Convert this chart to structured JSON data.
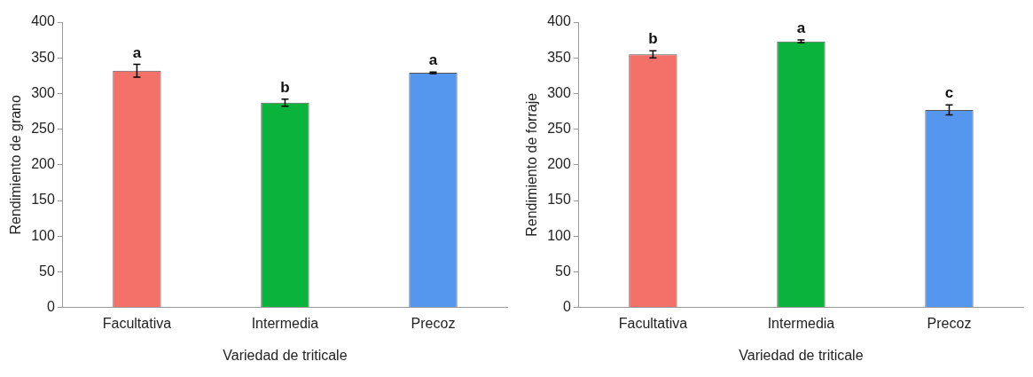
{
  "chart_data": [
    {
      "type": "bar",
      "xlabel": "Variedad de triticale",
      "ylabel": "Rendimiento de grano",
      "categories": [
        "Facultativa",
        "Intermedia",
        "Precoz"
      ],
      "values": [
        332,
        287,
        329
      ],
      "colors": [
        "#f4716a",
        "#0ab43c",
        "#5596ee"
      ],
      "errors": [
        9,
        5,
        1
      ],
      "ylim": [
        0,
        400
      ],
      "yticks": [
        0,
        50,
        100,
        150,
        200,
        250,
        300,
        350,
        400
      ],
      "grid": false,
      "legend": false,
      "annotations": [
        {
          "text": "a",
          "x": "Facultativa",
          "y": 341
        },
        {
          "text": "b",
          "x": "Intermedia",
          "y": 292
        },
        {
          "text": "a",
          "x": "Precoz",
          "y": 330
        }
      ]
    },
    {
      "type": "bar",
      "xlabel": "Variedad de triticale",
      "ylabel": "Rendimiento de forraje",
      "categories": [
        "Facultativa",
        "Intermedia",
        "Precoz"
      ],
      "values": [
        355,
        373,
        277
      ],
      "colors": [
        "#f4716a",
        "#0ab43c",
        "#5596ee"
      ],
      "errors": [
        5,
        2,
        7
      ],
      "ylim": [
        0,
        400
      ],
      "yticks": [
        0,
        50,
        100,
        150,
        200,
        250,
        300,
        350,
        400
      ],
      "grid": false,
      "legend": false,
      "annotations": [
        {
          "text": "b",
          "x": "Facultativa",
          "y": 360
        },
        {
          "text": "a",
          "x": "Intermedia",
          "y": 375
        },
        {
          "text": "c",
          "x": "Precoz",
          "y": 284
        }
      ]
    }
  ]
}
